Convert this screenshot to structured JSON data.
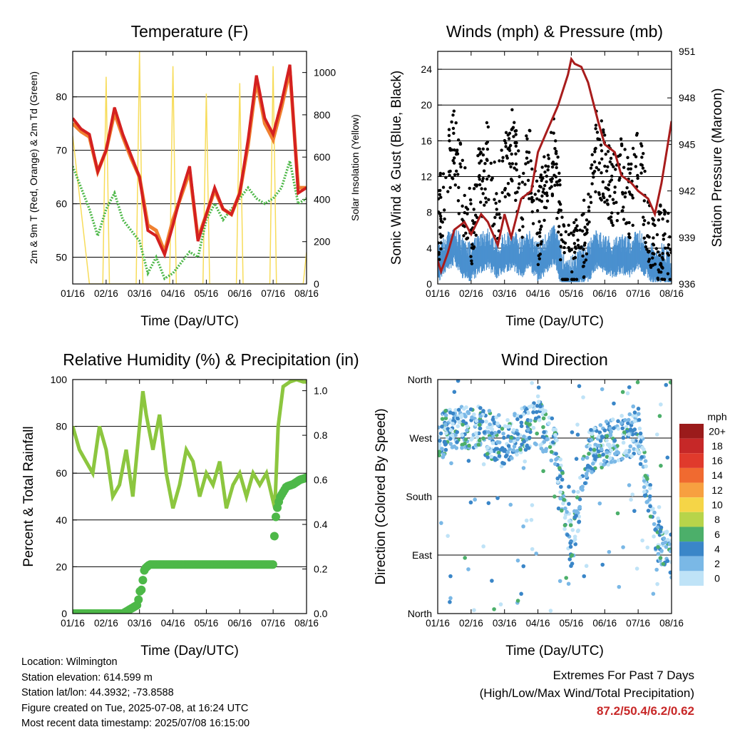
{
  "x_ticks": [
    "01/16",
    "02/16",
    "03/16",
    "04/16",
    "05/16",
    "06/16",
    "07/16",
    "08/16"
  ],
  "colors": {
    "temp_2m": "#d42020",
    "temp_9m": "#f08030",
    "dewpoint": "#4db848",
    "insolation": "#f7dc5a",
    "gust": "#000000",
    "wind": "#4a90cf",
    "pressure": "#a81c1c",
    "rh": "#8cc63f",
    "precip": "#4db848"
  },
  "info": {
    "location": "Location: Wilmington",
    "elevation": "Station elevation: 614.599 m",
    "latlon": "Station lat/lon: 44.3932; -73.8588",
    "created": "Figure created on Tue, 2025-07-08, at 16:24 UTC",
    "latest": "Most recent data timestamp: 2025/07/08 16:15:00"
  },
  "extremes": {
    "title": "Extremes For Past 7 Days",
    "subtitle": "(High/Low/Max Wind/Total Precipitation)",
    "values": "87.2/50.4/6.2/0.62"
  },
  "chart_data": [
    {
      "type": "line",
      "title": "Temperature (F)",
      "xlabel": "Time (Day/UTC)",
      "ylabel": "2m & 9m T (Red, Orange) & 2m Td (Green)",
      "y2label": "Solar Insolation (Yellow)",
      "x_ticks": [
        "01/16",
        "02/16",
        "03/16",
        "04/16",
        "05/16",
        "06/16",
        "07/16",
        "08/16"
      ],
      "xlim": [
        0,
        7
      ],
      "ylim": [
        45,
        88.5
      ],
      "yticks": [
        50,
        60,
        70,
        80
      ],
      "y2lim": [
        0,
        1100
      ],
      "y2ticks": [
        0,
        200,
        400,
        600,
        800,
        1000
      ],
      "series": [
        {
          "name": "2m T",
          "axis": "left",
          "x": [
            0,
            0.25,
            0.5,
            0.75,
            1.0,
            1.25,
            1.5,
            1.75,
            2.0,
            2.25,
            2.5,
            2.75,
            3.0,
            3.25,
            3.5,
            3.75,
            4.0,
            4.25,
            4.5,
            4.75,
            5.0,
            5.25,
            5.5,
            5.75,
            6.0,
            6.25,
            6.5,
            6.75,
            7.0
          ],
          "values": [
            76,
            74,
            73,
            66,
            70,
            78,
            73,
            69,
            65,
            55,
            54,
            50.5,
            56,
            62,
            67,
            53,
            58,
            63,
            59,
            58,
            62,
            72,
            84,
            76,
            73,
            79,
            86,
            62,
            63
          ]
        },
        {
          "name": "9m T",
          "axis": "left",
          "x": [
            0,
            0.25,
            0.5,
            0.75,
            1.0,
            1.25,
            1.5,
            1.75,
            2.0,
            2.25,
            2.5,
            2.75,
            3.0,
            3.25,
            3.5,
            3.75,
            4.0,
            4.25,
            4.5,
            4.75,
            5.0,
            5.25,
            5.5,
            5.75,
            6.0,
            6.25,
            6.5,
            6.75,
            7.0
          ],
          "values": [
            75,
            73.5,
            72.5,
            66,
            70,
            77,
            72.5,
            68.5,
            65,
            56,
            55,
            51,
            57,
            61.5,
            66,
            53.5,
            58,
            62.5,
            59,
            58,
            62,
            71,
            83,
            75,
            72,
            78,
            85,
            63,
            63
          ]
        },
        {
          "name": "2m Td",
          "axis": "left",
          "x": [
            0,
            0.25,
            0.5,
            0.75,
            1.0,
            1.25,
            1.5,
            1.75,
            2.0,
            2.25,
            2.5,
            2.75,
            3.0,
            3.25,
            3.5,
            3.75,
            4.0,
            4.25,
            4.5,
            4.75,
            5.0,
            5.25,
            5.5,
            5.75,
            6.0,
            6.25,
            6.5,
            6.75,
            7.0
          ],
          "values": [
            67,
            63,
            59,
            54,
            59,
            62,
            57,
            55,
            53,
            47,
            50,
            46,
            47,
            49,
            51,
            50,
            57,
            60,
            57,
            59,
            61,
            63,
            61,
            60,
            61,
            63,
            68,
            60,
            61
          ]
        },
        {
          "name": "Solar Insolation",
          "axis": "right",
          "x": [
            0,
            0.5,
            0.9,
            1.0,
            1.1,
            1.5,
            1.9,
            2.0,
            2.1,
            2.5,
            2.9,
            3.0,
            3.1,
            3.5,
            3.9,
            4.0,
            4.1,
            4.5,
            4.9,
            5.0,
            5.1,
            5.5,
            5.9,
            6.0,
            6.1,
            6.5,
            6.9,
            7.0
          ],
          "values": [
            700,
            0,
            0,
            980,
            0,
            0,
            0,
            1100,
            0,
            0,
            0,
            1030,
            0,
            0,
            0,
            900,
            0,
            0,
            0,
            950,
            0,
            0,
            0,
            1030,
            0,
            0,
            0,
            150
          ]
        }
      ]
    },
    {
      "type": "scatter",
      "title": "Winds (mph) & Pressure (mb)",
      "xlabel": "Time (Day/UTC)",
      "ylabel": "Sonic Wind & Gust (Blue, Black)",
      "y2label": "Station Pressure (Maroon)",
      "x_ticks": [
        "01/16",
        "02/16",
        "03/16",
        "04/16",
        "05/16",
        "06/16",
        "07/16",
        "08/16"
      ],
      "xlim": [
        0,
        7
      ],
      "ylim": [
        0,
        26
      ],
      "yticks": [
        0,
        4,
        8,
        12,
        16,
        20,
        24
      ],
      "y2lim": [
        936,
        951
      ],
      "y2ticks": [
        936,
        939,
        942,
        945,
        948,
        951
      ],
      "series": [
        {
          "name": "Gust",
          "axis": "left",
          "x": [
            0,
            0.25,
            0.5,
            0.75,
            1.0,
            1.25,
            1.5,
            1.75,
            2.0,
            2.25,
            2.5,
            2.75,
            3.0,
            3.25,
            3.5,
            3.75,
            4.0,
            4.25,
            4.5,
            4.75,
            5.0,
            5.25,
            5.5,
            5.75,
            6.0,
            6.25,
            6.5,
            6.75,
            7.0
          ],
          "values": [
            6,
            12,
            15,
            10,
            6,
            11,
            14,
            8,
            12,
            16,
            9,
            14,
            6,
            12,
            15,
            3,
            2,
            4,
            6,
            15,
            13,
            10,
            12,
            9,
            14,
            8,
            4,
            5,
            3
          ]
        },
        {
          "name": "Sonic Wind",
          "axis": "left",
          "x": [
            0,
            0.25,
            0.5,
            0.75,
            1.0,
            1.25,
            1.5,
            1.75,
            2.0,
            2.25,
            2.5,
            2.75,
            3.0,
            3.25,
            3.5,
            3.75,
            4.0,
            4.25,
            4.5,
            4.75,
            5.0,
            5.25,
            5.5,
            5.75,
            6.0,
            6.25,
            6.5,
            6.75,
            7.0
          ],
          "values": [
            2.5,
            3.5,
            4.5,
            3,
            2.5,
            3.5,
            4,
            3,
            3.5,
            4,
            3,
            4,
            2.5,
            3.5,
            4.5,
            1.5,
            1,
            2,
            2.5,
            4,
            3.5,
            3,
            3.5,
            3,
            4,
            3,
            2,
            2.5,
            1.5
          ]
        },
        {
          "name": "Station Pressure",
          "axis": "right",
          "x": [
            0,
            0.1,
            0.3,
            0.5,
            0.8,
            1.0,
            1.3,
            1.5,
            1.8,
            2.0,
            2.2,
            2.5,
            2.8,
            3.0,
            3.3,
            3.6,
            3.9,
            4.0,
            4.1,
            4.3,
            4.5,
            4.8,
            5.0,
            5.3,
            5.5,
            5.8,
            6.0,
            6.3,
            6.5,
            6.7,
            6.85,
            7.0
          ],
          "values": [
            937.5,
            936.8,
            938.0,
            939.5,
            940.0,
            939.2,
            940.5,
            940.0,
            938.5,
            940.5,
            939.0,
            941.5,
            942.0,
            944.5,
            946.0,
            947.5,
            949.5,
            950.5,
            950.2,
            950.0,
            949.0,
            946.5,
            945.0,
            944.5,
            943.0,
            942.5,
            942.0,
            941.5,
            940.5,
            942.5,
            944.5,
            946.5
          ]
        }
      ]
    },
    {
      "type": "line",
      "title": "Relative Humidity (%) & Precipitation (in)",
      "xlabel": "Time (Day/UTC)",
      "ylabel": "Percent & Total Rainfall",
      "x_ticks": [
        "01/16",
        "02/16",
        "03/16",
        "04/16",
        "05/16",
        "06/16",
        "07/16",
        "08/16"
      ],
      "xlim": [
        0,
        7
      ],
      "ylim": [
        0,
        100
      ],
      "yticks": [
        0,
        20,
        40,
        60,
        80,
        100
      ],
      "y2lim": [
        0,
        1.05
      ],
      "y2ticks": [
        0.0,
        0.2,
        0.4,
        0.6,
        0.8,
        1.0
      ],
      "series": [
        {
          "name": "Relative Humidity",
          "axis": "left",
          "x": [
            0,
            0.2,
            0.4,
            0.6,
            0.8,
            1.0,
            1.2,
            1.4,
            1.6,
            1.8,
            2.0,
            2.1,
            2.2,
            2.4,
            2.6,
            2.8,
            3.0,
            3.2,
            3.4,
            3.6,
            3.8,
            4.0,
            4.2,
            4.4,
            4.6,
            4.8,
            5.0,
            5.2,
            5.4,
            5.6,
            5.8,
            6.0,
            6.05,
            6.15,
            6.3,
            6.5,
            6.7,
            6.9,
            7.0
          ],
          "values": [
            80,
            70,
            65,
            60,
            80,
            70,
            50,
            55,
            70,
            50,
            80,
            95,
            85,
            70,
            85,
            60,
            45,
            55,
            70,
            65,
            50,
            60,
            55,
            65,
            45,
            55,
            60,
            50,
            60,
            55,
            60,
            48,
            45,
            80,
            97,
            99,
            100,
            99,
            99
          ]
        },
        {
          "name": "Total Rainfall",
          "axis": "right",
          "x": [
            0,
            1.0,
            1.5,
            1.95,
            2.0,
            2.05,
            2.15,
            2.3,
            3.0,
            4.0,
            5.0,
            6.0,
            6.05,
            6.1,
            6.2,
            6.4,
            6.6,
            6.8,
            7.0
          ],
          "values": [
            0.0,
            0.0,
            0.0,
            0.04,
            0.1,
            0.1,
            0.2,
            0.22,
            0.22,
            0.22,
            0.22,
            0.22,
            0.39,
            0.46,
            0.52,
            0.57,
            0.58,
            0.6,
            0.61
          ]
        }
      ]
    },
    {
      "type": "scatter",
      "title": "Wind Direction",
      "xlabel": "Time (Day/UTC)",
      "ylabel": "Direction (Colored By Speed)",
      "x_ticks": [
        "01/16",
        "02/16",
        "03/16",
        "04/16",
        "05/16",
        "06/16",
        "07/16",
        "08/16"
      ],
      "xlim": [
        0,
        7
      ],
      "ylim": [
        0,
        360
      ],
      "y_tick_labels": [
        "North",
        "East",
        "South",
        "West",
        "North"
      ],
      "yticks": [
        0,
        90,
        180,
        270,
        360
      ],
      "colorbar": {
        "title": "mph",
        "labels": [
          "20+",
          "18",
          "16",
          "14",
          "12",
          "10",
          "8",
          "6",
          "4",
          "2",
          "0"
        ],
        "colors": [
          "#9b1b1b",
          "#c62828",
          "#e03a2c",
          "#f06a30",
          "#f7a040",
          "#f5d547",
          "#b7d44a",
          "#4caf6a",
          "#3a86c8",
          "#7ab8e6",
          "#bfe3f7"
        ]
      },
      "series": [
        {
          "name": "Direction",
          "x": [
            0,
            0.5,
            1.0,
            1.5,
            2.0,
            2.5,
            3.0,
            3.5,
            4.0,
            4.5,
            5.0,
            5.5,
            6.0,
            6.5,
            7.0
          ],
          "values": [
            270,
            285,
            290,
            275,
            265,
            280,
            295,
            260,
            100,
            250,
            260,
            270,
            280,
            120,
            90
          ]
        }
      ]
    }
  ]
}
